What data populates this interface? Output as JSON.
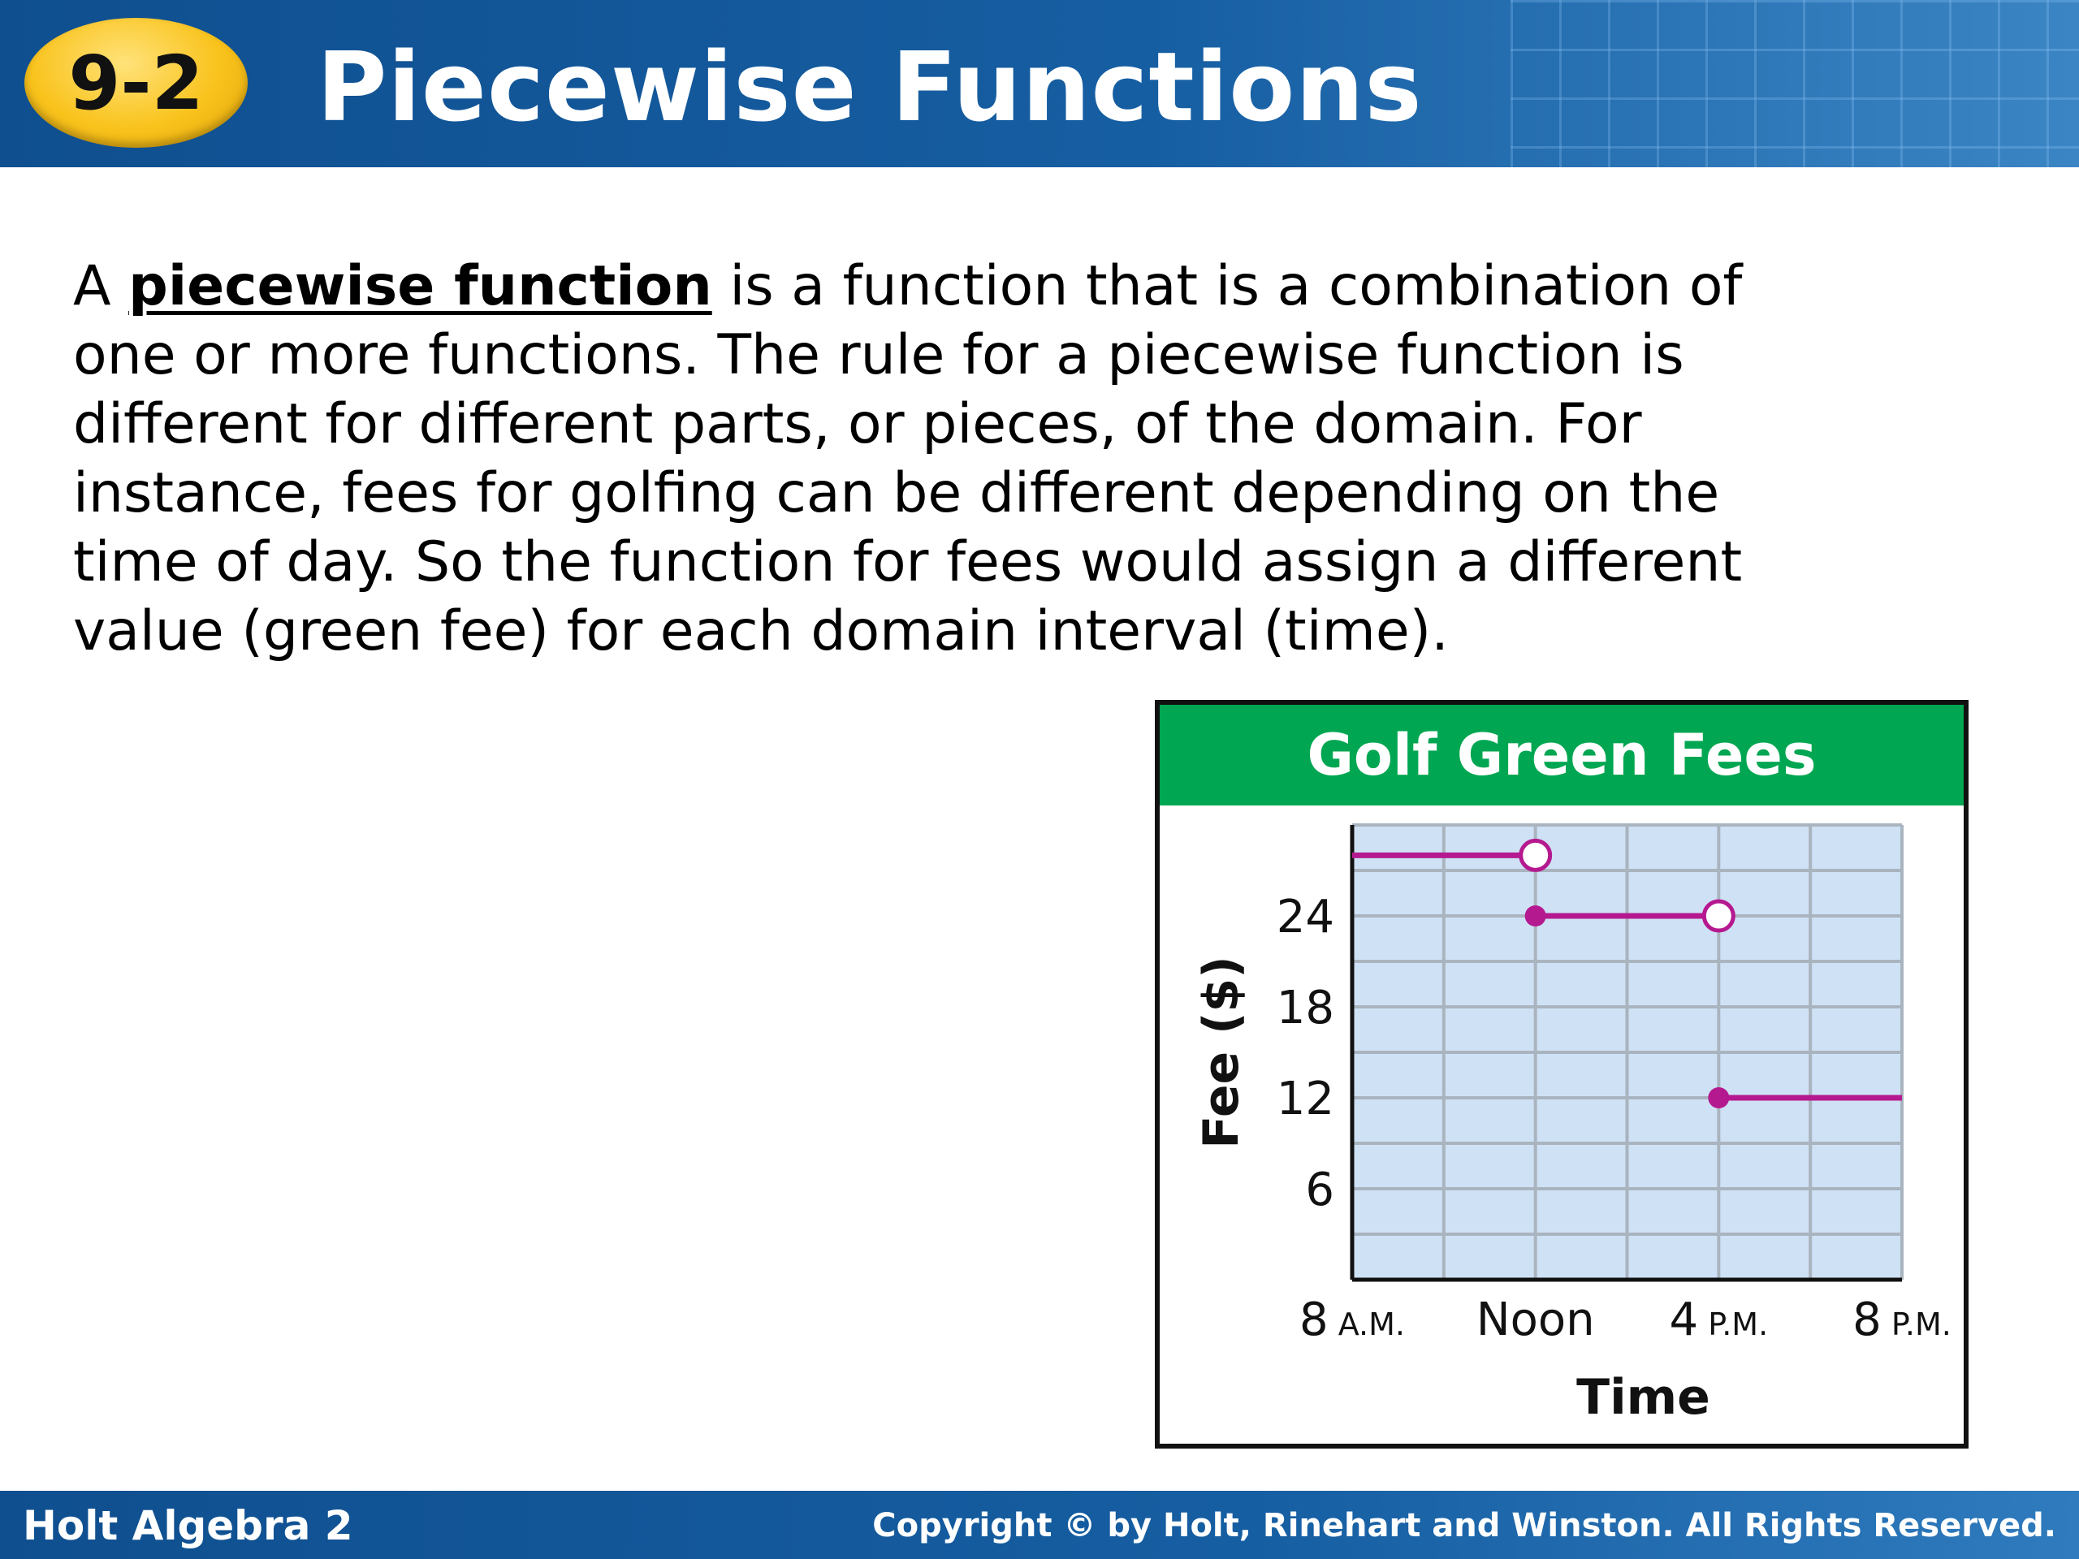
{
  "header": {
    "lesson_number": "9-2",
    "title": "Piecewise Functions"
  },
  "body": {
    "line1_pre": "A ",
    "term": "piecewise function",
    "line1_post": " is a function that is a combination of",
    "line2": "one or more functions. The rule for a piecewise function is",
    "line3": "different for different parts, or pieces, of the domain. For",
    "line4": "instance, fees for golfing can be different depending on the",
    "line5": "time of day. So the function for fees would assign a different",
    "line6": "value (green fee) for each domain interval (time)."
  },
  "chart_data": {
    "type": "line",
    "title": "Golf Green Fees",
    "xlabel": "Time",
    "ylabel": "Fee ($)",
    "x_unit": "hours after 8 A.M.",
    "xlim": [
      0,
      12
    ],
    "ylim": [
      0,
      30
    ],
    "x_ticks": [
      {
        "value": 0,
        "label_main": "8",
        "label_suffix": "A.M."
      },
      {
        "value": 4,
        "label_main": "Noon",
        "label_suffix": ""
      },
      {
        "value": 8,
        "label_main": "4",
        "label_suffix": "P.M."
      },
      {
        "value": 12,
        "label_main": "8",
        "label_suffix": "P.M."
      }
    ],
    "y_ticks": [
      6,
      12,
      18,
      24
    ],
    "grid": true,
    "grid_step_x": 2,
    "grid_step_y": 3,
    "segments": [
      {
        "x_start": 0,
        "x_end": 4,
        "y": 28,
        "start_point": "none",
        "end_point": "open"
      },
      {
        "x_start": 4,
        "x_end": 8,
        "y": 24,
        "start_point": "closed",
        "end_point": "open"
      },
      {
        "x_start": 8,
        "x_end": 12,
        "y": 12,
        "start_point": "closed",
        "end_point": "none"
      }
    ],
    "colors": {
      "line": "#b5198f",
      "plot_bg": "#cfe2f5",
      "grid": "#a9b4bf",
      "banner": "#00a651"
    }
  },
  "footer": {
    "publisher_book": "Holt Algebra 2",
    "copyright": "Copyright © by Holt, Rinehart and Winston. All Rights Reserved."
  }
}
